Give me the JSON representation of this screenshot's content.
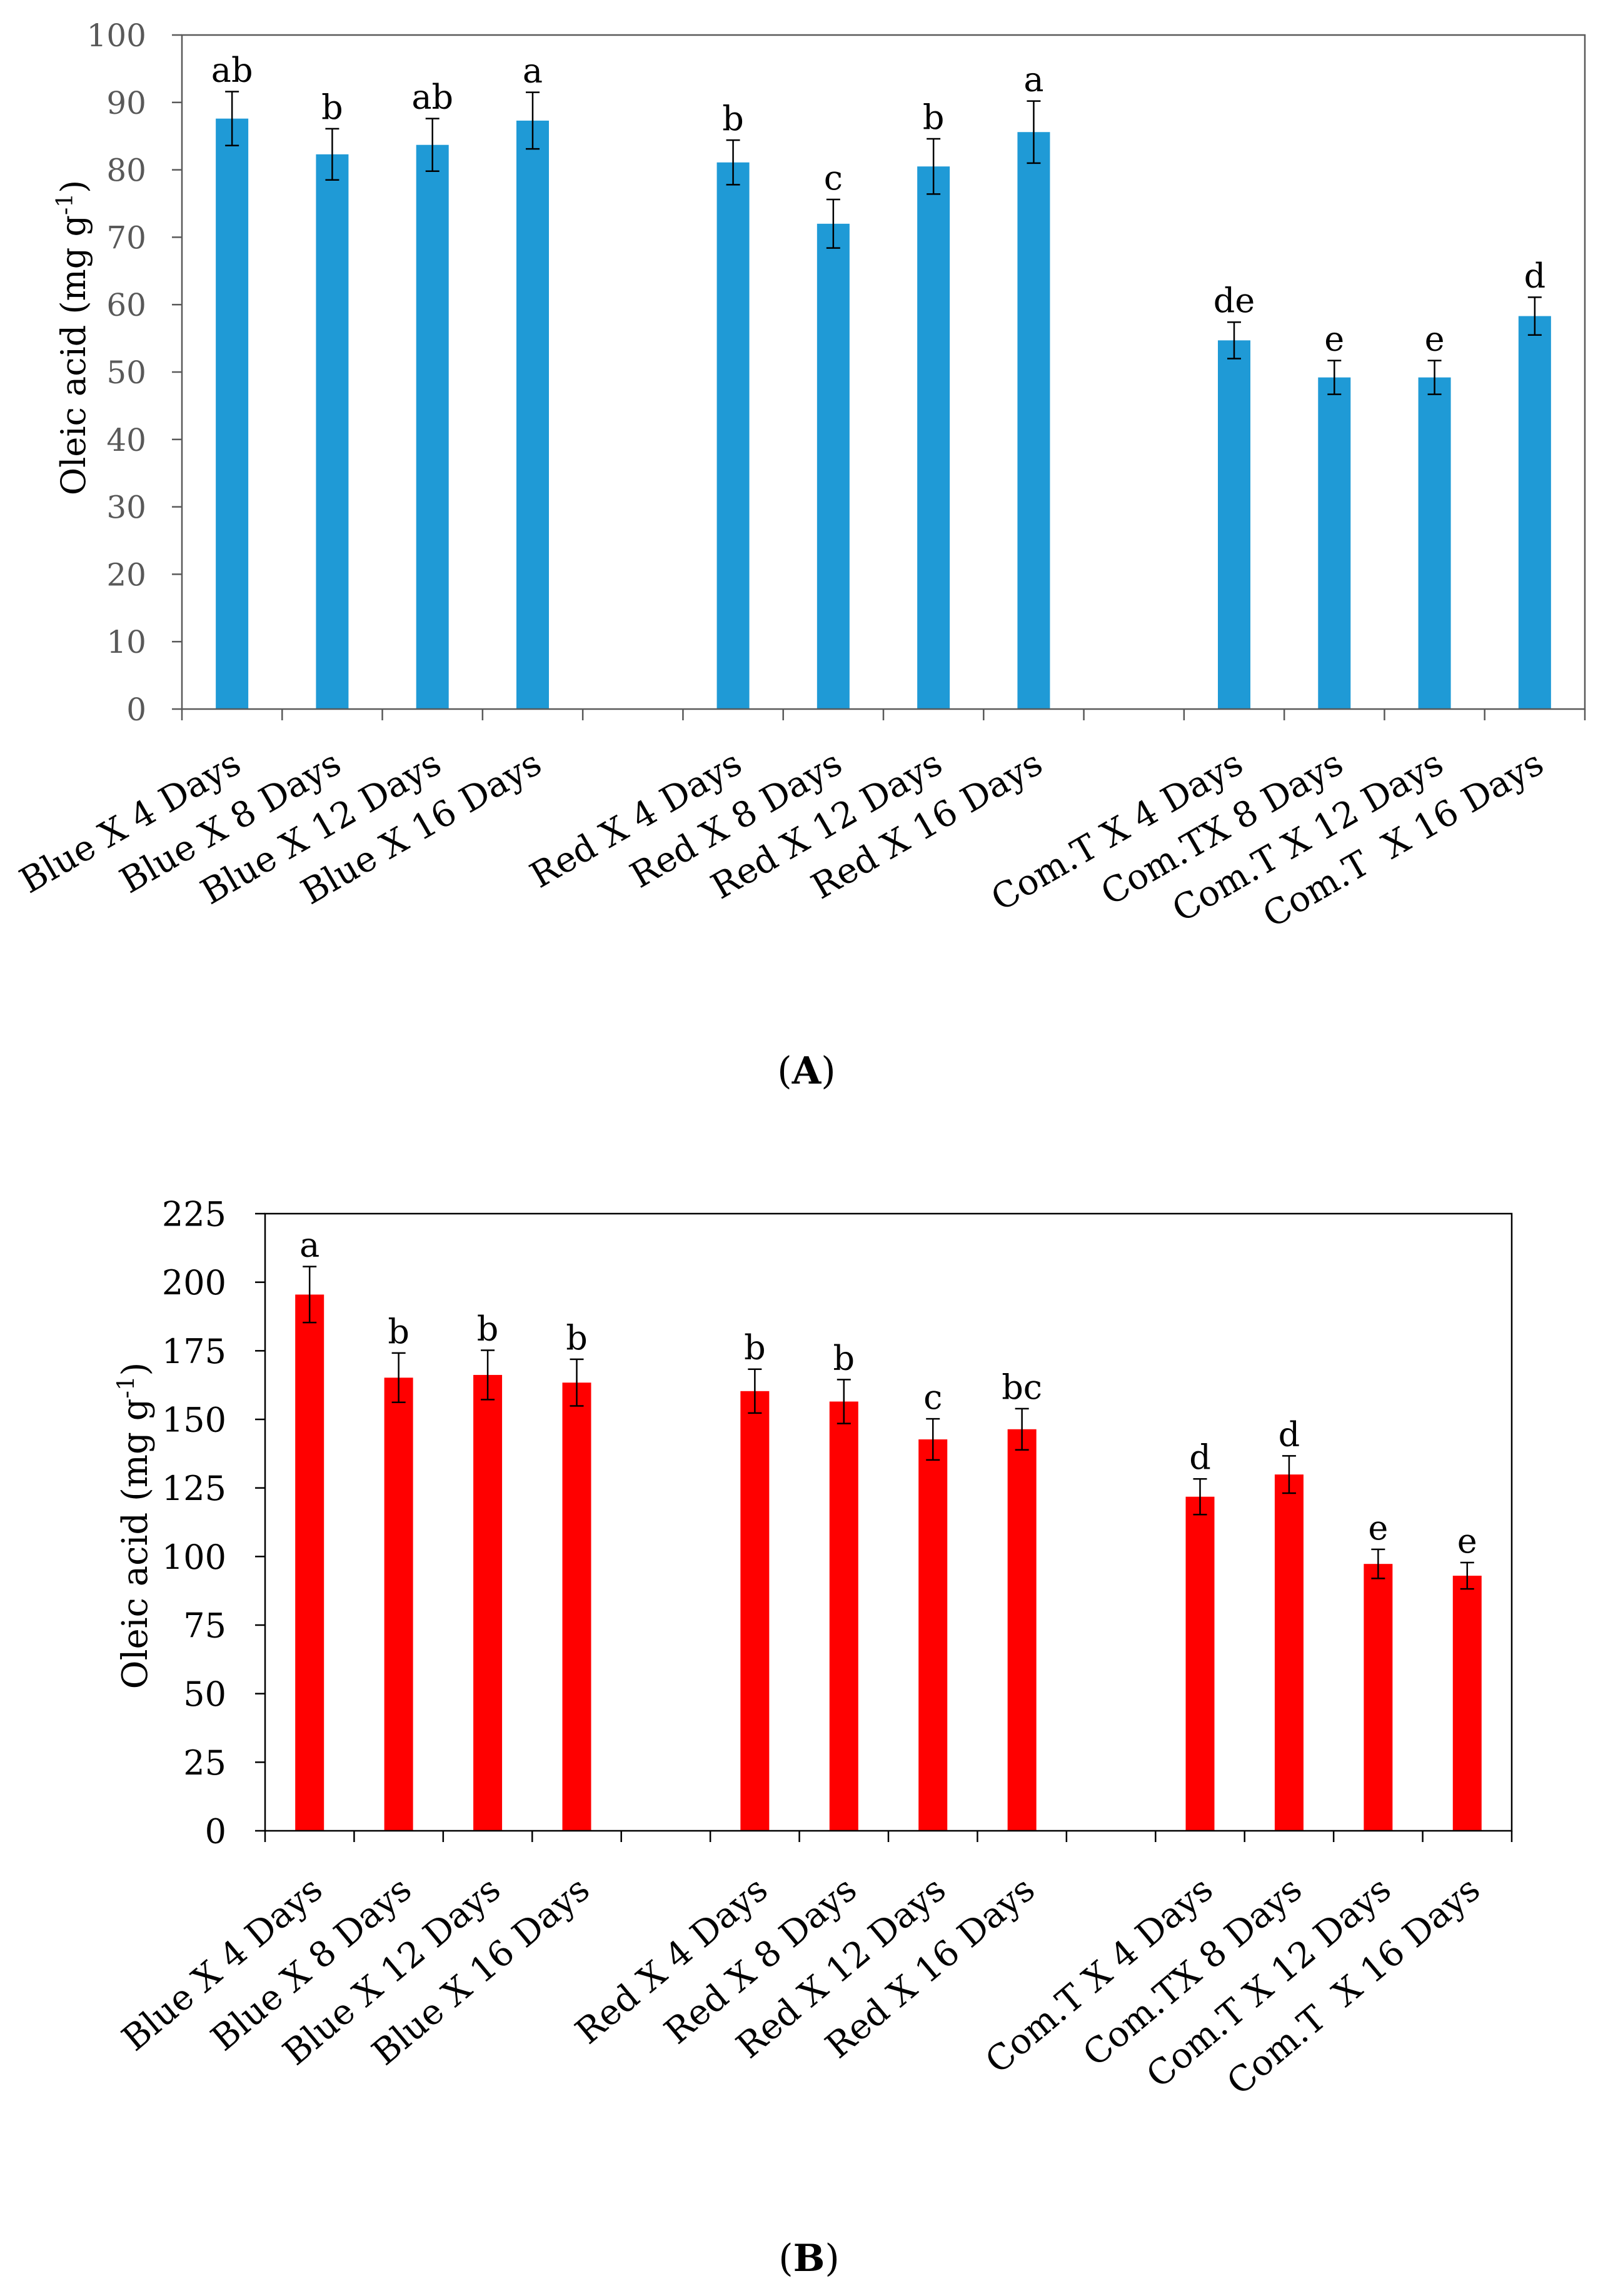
{
  "chart_data": [
    {
      "type": "bar",
      "categories": [
        "Blue X 4 Days",
        "Blue X 8 Days",
        "Blue X 12 Days",
        "Blue X 16 Days",
        "Red X 4 Days",
        "Red X 8 Days",
        "Red X 12 Days",
        "Red X 16 Days",
        "Com.T X 4 Days",
        "Com.TX 8 Days",
        "Com.T X 12 Days",
        "Com.T  X 16 Days"
      ],
      "values": [
        87.6,
        82.3,
        83.7,
        87.3,
        81.1,
        72.0,
        80.5,
        85.6,
        54.7,
        49.2,
        49.2,
        58.3
      ],
      "errors": [
        4.0,
        3.8,
        3.9,
        4.2,
        3.3,
        3.6,
        4.1,
        4.6,
        2.7,
        2.5,
        2.5,
        2.8
      ],
      "letters": [
        "ab",
        "b",
        "ab",
        "a",
        "b",
        "c",
        "b",
        "a",
        "de",
        "e",
        "e",
        "d"
      ],
      "ylabel": {
        "text": "Oleic acid (mg g",
        "superscript": "-1",
        "close": ")"
      },
      "ylim": [
        0,
        100
      ],
      "yticks": [
        0,
        10,
        20,
        30,
        40,
        50,
        60,
        70,
        80,
        90,
        100
      ],
      "grid": false,
      "bar_color": "#1F9AD6",
      "tick_label_color": "#595959",
      "panel": {
        "open": "(",
        "label": "A",
        "close": ")"
      }
    },
    {
      "type": "bar",
      "categories": [
        "Blue X 4 Days",
        "Blue X 8 Days",
        "Blue X 12 Days",
        "Blue X 16 Days",
        "Red X 4 Days",
        "Red X 8 Days",
        "Red X 12 Days",
        "Red X 16 Days",
        "Com.T X 4 Days",
        "Com.TX 8 Days",
        "Com.T X 12 Days",
        "Com.T  X 16 Days"
      ],
      "values": [
        195.5,
        165.2,
        166.2,
        163.4,
        160.3,
        156.5,
        142.7,
        146.4,
        121.8,
        129.9,
        97.3,
        93.0
      ],
      "errors": [
        10.2,
        9.0,
        9.0,
        8.5,
        8.0,
        8.0,
        7.5,
        7.5,
        6.5,
        6.8,
        5.3,
        4.8
      ],
      "letters": [
        "a",
        "b",
        "b",
        "b",
        "b",
        "b",
        "c",
        "bc",
        "d",
        "d",
        "e",
        "e"
      ],
      "ylabel": {
        "text": "Oleic acid (mg g",
        "superscript": "-1",
        "close": ")"
      },
      "ylim": [
        0,
        225
      ],
      "yticks": [
        0,
        25,
        50,
        75,
        100,
        125,
        150,
        175,
        200,
        225
      ],
      "grid": false,
      "bar_color": "#FF0000",
      "tick_label_color": "#000000",
      "panel": {
        "open": "(",
        "label": "B",
        "close": ")"
      }
    }
  ]
}
